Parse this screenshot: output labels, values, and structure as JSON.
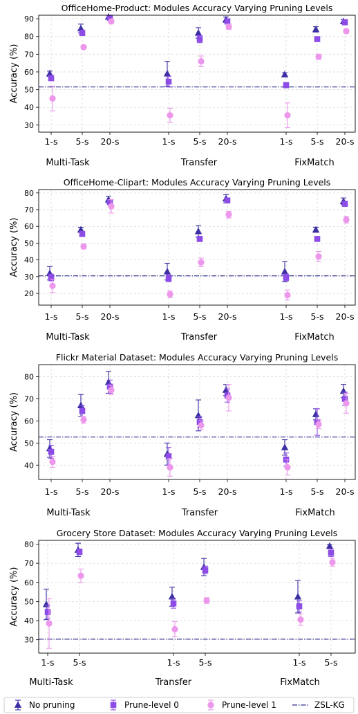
{
  "chart_data": [
    {
      "type": "scatter",
      "title": "OfficeHome-Product: Modules Accuracy Varying Pruning Levels",
      "ylabel": "Accuracy (%)",
      "ylim": [
        26,
        92
      ],
      "yticks": [
        30,
        40,
        50,
        60,
        70,
        80,
        90
      ],
      "groups": [
        {
          "name": "Multi-Task",
          "categories": [
            "1-s",
            "5-s",
            "20-s"
          ]
        },
        {
          "name": "Transfer",
          "categories": [
            "1-s",
            "5-s",
            "20-s"
          ]
        },
        {
          "name": "FixMatch",
          "categories": [
            "1-s",
            "5-s",
            "20-s"
          ]
        }
      ],
      "baseline": {
        "name": "ZSL-KG",
        "value": 51.5
      },
      "series": [
        {
          "name": "No pruning",
          "marker": "triangle",
          "color": "#3b2fa3",
          "values": [
            59,
            84.5,
            91,
            59,
            82,
            89.5,
            58.5,
            84,
            88.5
          ],
          "errors": [
            1.5,
            2.5,
            1,
            7,
            3,
            1.5,
            1,
            1.5,
            1
          ]
        },
        {
          "name": "Prune-level 0",
          "marker": "square",
          "color": "#8e4ce6",
          "values": [
            56.5,
            82,
            90.5,
            54.5,
            78.5,
            88.5,
            52.5,
            78.5,
            88
          ],
          "errors": [
            1.5,
            1.5,
            1,
            3,
            2,
            1.5,
            1.5,
            1,
            1
          ]
        },
        {
          "name": "Prune-level 1",
          "marker": "circle",
          "color": "#ec97ec",
          "values": [
            45,
            74,
            88.5,
            35.5,
            66,
            85.5,
            35.5,
            68.5,
            83
          ],
          "errors": [
            7,
            1,
            1,
            4,
            3,
            1.5,
            7,
            1.5,
            1
          ]
        }
      ]
    },
    {
      "type": "scatter",
      "title": "OfficeHome-Clipart: Modules Accuracy Varying Pruning Levels",
      "ylabel": "Accuracy (%)",
      "ylim": [
        13,
        82
      ],
      "yticks": [
        20,
        30,
        40,
        50,
        60,
        70,
        80
      ],
      "groups": [
        {
          "name": "Multi-Task",
          "categories": [
            "1-s",
            "5-s",
            "20-s"
          ]
        },
        {
          "name": "Transfer",
          "categories": [
            "1-s",
            "5-s",
            "20-s"
          ]
        },
        {
          "name": "FixMatch",
          "categories": [
            "1-s",
            "5-s",
            "20-s"
          ]
        }
      ],
      "baseline": {
        "name": "ZSL-KG",
        "value": 30.5
      },
      "series": [
        {
          "name": "No pruning",
          "marker": "triangle",
          "color": "#3b2fa3",
          "values": [
            32,
            58,
            76,
            33,
            57,
            76.5,
            33,
            58,
            75
          ],
          "errors": [
            4,
            1.5,
            2,
            5,
            3.5,
            2.5,
            6,
            1.5,
            2
          ]
        },
        {
          "name": "Prune-level 0",
          "marker": "square",
          "color": "#8e4ce6",
          "values": [
            29.5,
            55.5,
            74.5,
            29,
            52.5,
            75.5,
            29.5,
            52.5,
            73.5
          ],
          "errors": [
            2,
            1.5,
            1.5,
            2,
            1.5,
            1.5,
            2,
            1,
            1.5
          ]
        },
        {
          "name": "Prune-level 1",
          "marker": "circle",
          "color": "#ec97ec",
          "values": [
            24.5,
            48,
            72,
            19.5,
            38.5,
            67,
            19,
            42,
            64
          ],
          "errors": [
            4,
            1.5,
            4,
            2,
            2.5,
            2,
            3,
            3,
            2
          ]
        }
      ]
    },
    {
      "type": "scatter",
      "title": "Flickr Material Dataset: Modules Accuracy Varying Pruning Levels",
      "ylabel": "Accuracy (%)",
      "ylim": [
        33.5,
        85.5
      ],
      "yticks": [
        40,
        50,
        60,
        70,
        80
      ],
      "groups": [
        {
          "name": "Multi-Task",
          "categories": [
            "1-s",
            "5-s",
            "20-s"
          ]
        },
        {
          "name": "Transfer",
          "categories": [
            "1-s",
            "5-s",
            "20-s"
          ]
        },
        {
          "name": "FixMatch",
          "categories": [
            "1-s",
            "5-s",
            "20-s"
          ]
        }
      ],
      "baseline": {
        "name": "ZSL-KG",
        "value": 52.7
      },
      "series": [
        {
          "name": "No pruning",
          "marker": "triangle",
          "color": "#3b2fa3",
          "values": [
            47.5,
            67,
            77.5,
            45,
            62.5,
            74,
            48,
            63,
            73.5
          ],
          "errors": [
            4,
            5,
            5,
            5,
            7,
            2.5,
            3.5,
            2.5,
            3
          ]
        },
        {
          "name": "Prune-level 0",
          "marker": "square",
          "color": "#8e4ce6",
          "values": [
            46,
            64.5,
            75.5,
            44,
            59.5,
            71.5,
            42.5,
            59.5,
            70
          ],
          "errors": [
            3,
            2.5,
            3,
            4,
            2.5,
            3,
            3,
            6,
            3
          ]
        },
        {
          "name": "Prune-level 1",
          "marker": "circle",
          "color": "#ec97ec",
          "values": [
            41.5,
            60.5,
            74,
            39,
            58,
            70.5,
            39,
            58.5,
            68
          ],
          "errors": [
            2.5,
            1.5,
            2,
            4,
            2,
            6,
            3.5,
            2,
            4.5
          ]
        }
      ]
    },
    {
      "type": "scatter",
      "title": "Grocery Store Dataset: Modules Accuracy Varying Pruning Levels",
      "ylabel": "Accuracy (%)",
      "ylim": [
        23,
        82
      ],
      "yticks": [
        30,
        40,
        50,
        60,
        70,
        80
      ],
      "groups": [
        {
          "name": "Multi-Task",
          "categories": [
            "1-s",
            "5-s"
          ]
        },
        {
          "name": "Transfer",
          "categories": [
            "1-s",
            "5-s"
          ]
        },
        {
          "name": "FixMatch",
          "categories": [
            "1-s",
            "5-s"
          ]
        }
      ],
      "baseline": {
        "name": "ZSL-KG",
        "value": 30.3
      },
      "series": [
        {
          "name": "No pruning",
          "marker": "triangle",
          "color": "#3b2fa3",
          "values": [
            48.5,
            77,
            52.5,
            68,
            52.5,
            79
          ],
          "errors": [
            8,
            3.5,
            5,
            4.5,
            8.5,
            0.8
          ]
        },
        {
          "name": "Prune-level 0",
          "marker": "square",
          "color": "#8e4ce6",
          "values": [
            44.5,
            76,
            49,
            66.5,
            47.5,
            75.5
          ],
          "errors": [
            3.5,
            1.5,
            2.5,
            2,
            3,
            2
          ]
        },
        {
          "name": "Prune-level 1",
          "marker": "circle",
          "color": "#ec97ec",
          "values": [
            38.5,
            63.5,
            35.5,
            50.5,
            40.5,
            70.5
          ],
          "errors": [
            13,
            3.5,
            4,
            1.5,
            3,
            2
          ]
        }
      ]
    }
  ],
  "legend": {
    "items": [
      {
        "label": "No pruning",
        "marker": "triangle",
        "color": "#3b2fa3"
      },
      {
        "label": "Prune-level 0",
        "marker": "square",
        "color": "#8e4ce6"
      },
      {
        "label": "Prune-level 1",
        "marker": "circle",
        "color": "#ec97ec"
      },
      {
        "label": "ZSL-KG",
        "marker": "dashdot",
        "color": "#2a2a8a"
      }
    ]
  }
}
